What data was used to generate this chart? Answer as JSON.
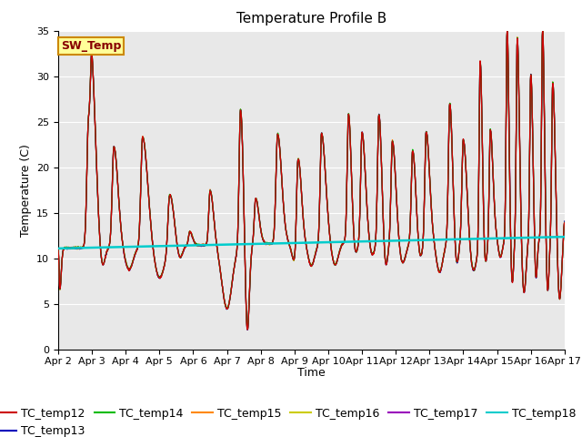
{
  "title": "Temperature Profile B",
  "xlabel": "Time",
  "ylabel": "Temperature (C)",
  "ylim": [
    0,
    35
  ],
  "xlim_days": [
    0,
    15
  ],
  "x_tick_labels": [
    "Apr 2",
    "Apr 3",
    "Apr 4",
    "Apr 5",
    "Apr 6",
    "Apr 7",
    "Apr 8",
    "Apr 9",
    "Apr 10",
    "Apr 11",
    "Apr 12",
    "Apr 13",
    "Apr 14",
    "Apr 15",
    "Apr 16",
    "Apr 17"
  ],
  "series_colors": {
    "TC_temp12": "#cc0000",
    "TC_temp13": "#0000bb",
    "TC_temp14": "#00bb00",
    "TC_temp15": "#ff8800",
    "TC_temp16": "#cccc00",
    "TC_temp17": "#9900bb",
    "TC_temp18": "#00cccc"
  },
  "SW_Temp_box_color": "#ffff99",
  "SW_Temp_border_color": "#cc8800",
  "SW_Temp_text_color": "#880000",
  "plot_bg_color": "#e8e8e8",
  "grid_color": "#ffffff",
  "title_fontsize": 11,
  "legend_fontsize": 9,
  "figsize": [
    6.4,
    4.8
  ],
  "dpi": 100
}
